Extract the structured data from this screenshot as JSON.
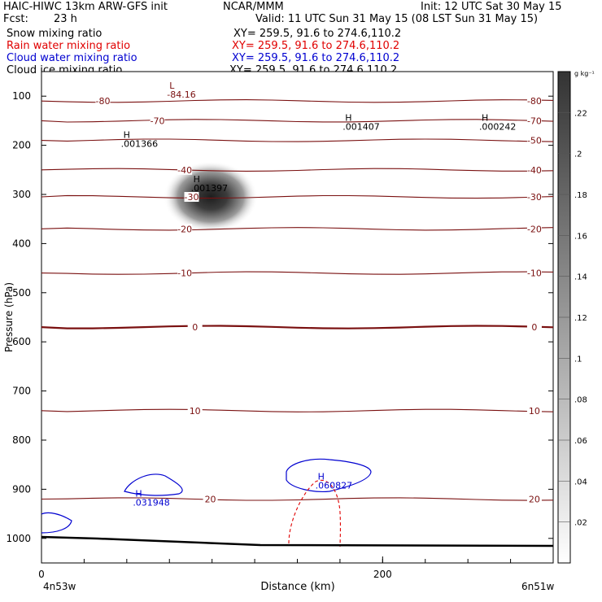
{
  "header": {
    "model": "HAIC-HIWC 13km ARW-GFS init",
    "center": "NCAR/MMM",
    "init": "Init: 12 UTC Sat 30 May 15",
    "fcst_label": "Fcst:",
    "fcst_value": "23 h",
    "valid": "Valid: 11 UTC Sun 31 May 15 (08 LST Sun 31 May 15)"
  },
  "fields": [
    {
      "name": "Snow mixing ratio",
      "xy": "XY= 259.5, 91.6 to 274.6,110.2",
      "color": "#000000"
    },
    {
      "name": "Rain water mixing ratio",
      "xy": "XY= 259.5, 91.6 to 274.6,110.2",
      "color": "#e00000"
    },
    {
      "name": "Cloud water mixing ratio",
      "xy": "XY= 259.5, 91.6 to 274.6,110.2",
      "color": "#0000d0"
    },
    {
      "name": "Cloud ice mixing ratio",
      "xy": "XY= 259.5, 91.6 to 274.6,110.2",
      "color": "#000000"
    }
  ],
  "colors": {
    "temperature": "#7a1010",
    "rain": "#e00000",
    "cloud_water": "#0000d0",
    "terrain": "#000000"
  },
  "chart_data": {
    "type": "cross-section",
    "xlabel": "Distance (km)",
    "ylabel": "Pressure (hPa)",
    "xlim": [
      0,
      300
    ],
    "ylim": [
      1050,
      50
    ],
    "x_ticks": [
      0,
      200
    ],
    "y_ticks": [
      100,
      200,
      300,
      400,
      500,
      600,
      700,
      800,
      900,
      1000
    ],
    "left_end": "4n53w",
    "right_end": "6n51w",
    "colorbar": {
      "unit": "g kg⁻¹",
      "ticks": [
        ".02",
        ".04",
        ".06",
        ".08",
        ".1",
        ".12",
        ".14",
        ".16",
        ".18",
        ".2",
        ".22"
      ]
    },
    "temperature_contours": [
      {
        "label": "-80",
        "p": 110,
        "label_x": [
          36,
          289
        ]
      },
      {
        "label": "-70",
        "p": 150,
        "label_x": [
          68,
          289
        ]
      },
      {
        "label": "-50",
        "p": 190,
        "label_x": [
          289
        ]
      },
      {
        "label": "-40",
        "p": 250,
        "label_x": [
          84,
          289
        ]
      },
      {
        "label": "-30",
        "p": 305,
        "label_x": [
          88,
          289
        ]
      },
      {
        "label": "-20",
        "p": 370,
        "label_x": [
          84,
          289
        ]
      },
      {
        "label": "-10",
        "p": 460,
        "label_x": [
          84,
          289
        ]
      },
      {
        "label": "0",
        "p": 570,
        "label_x": [
          90,
          289
        ]
      },
      {
        "label": "10",
        "p": 740,
        "label_x": [
          90,
          289
        ]
      },
      {
        "label": "20",
        "p": 920,
        "label_x": [
          99,
          289
        ]
      }
    ],
    "extrema": [
      {
        "type": "L",
        "value": "-84.16",
        "x": 75,
        "p": 85
      },
      {
        "type": "H",
        "value": ".001366",
        "x": 48,
        "p": 185
      },
      {
        "type": "H",
        "value": ".001397",
        "x": 89,
        "p": 275
      },
      {
        "type": "H",
        "value": ".001407",
        "x": 178,
        "p": 150
      },
      {
        "type": "H",
        "value": ".000242",
        "x": 258,
        "p": 150
      },
      {
        "type": "H",
        "value": ".031948",
        "x": 55,
        "p": 915
      },
      {
        "type": "H",
        "value": ".060827",
        "x": 162,
        "p": 880
      }
    ],
    "snow_max": {
      "x": 95,
      "p": 290,
      "value": 0.23
    }
  }
}
